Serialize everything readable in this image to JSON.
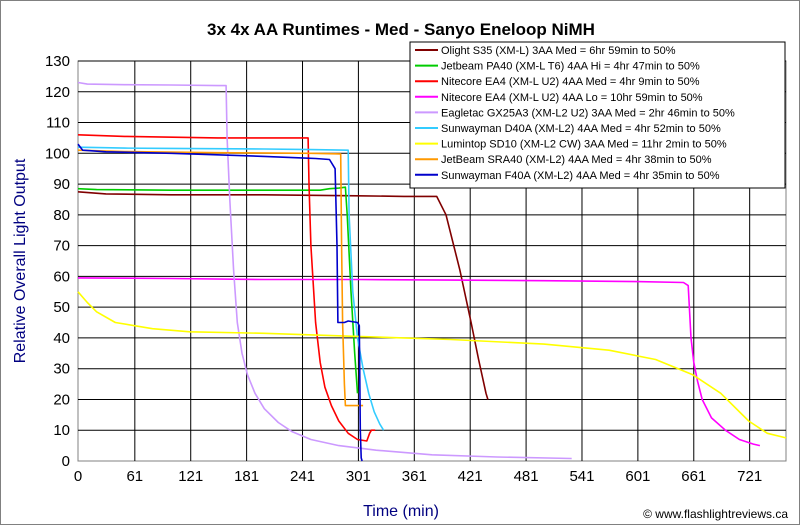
{
  "chart_data": {
    "type": "line",
    "title": "3x 4x AA Runtimes - Med - Sanyo Eneloop NiMH",
    "xlabel": "Time (min)",
    "ylabel": "Relative Overall Light Output",
    "xlim": [
      0,
      760
    ],
    "ylim": [
      0,
      130
    ],
    "x_ticks": [
      0,
      61,
      121,
      181,
      241,
      301,
      361,
      421,
      481,
      541,
      601,
      661,
      721
    ],
    "y_ticks": [
      0,
      10,
      20,
      30,
      40,
      50,
      60,
      70,
      80,
      90,
      100,
      110,
      120,
      130
    ],
    "grid": true,
    "legend_position": "top-right",
    "copyright": "© www.flashlightreviews.ca",
    "series": [
      {
        "name": "Olight S35 (XM-L) 3AA Med = 6hr 59min to 50%",
        "color": "#800000",
        "points": [
          [
            0,
            87.5
          ],
          [
            30,
            86.8
          ],
          [
            100,
            86.5
          ],
          [
            200,
            86.5
          ],
          [
            300,
            86.2
          ],
          [
            350,
            86
          ],
          [
            385,
            86
          ],
          [
            395,
            80
          ],
          [
            410,
            62
          ],
          [
            422,
            45
          ],
          [
            430,
            33
          ],
          [
            438,
            22
          ],
          [
            440,
            20
          ]
        ]
      },
      {
        "name": "Jetbeam PA40 (XM-L T6) 4AA Hi = 4hr 47min to 50%",
        "color": "#00cc00",
        "points": [
          [
            0,
            88.5
          ],
          [
            20,
            88.2
          ],
          [
            100,
            88
          ],
          [
            200,
            88
          ],
          [
            260,
            88
          ],
          [
            270,
            88.5
          ],
          [
            280,
            88.7
          ],
          [
            287,
            89
          ],
          [
            289,
            80
          ],
          [
            293,
            55
          ],
          [
            297,
            35
          ],
          [
            300,
            22
          ]
        ]
      },
      {
        "name": "Nitecore EA4 (XM-L U2) 4AA Med = 4hr 9min to 50%",
        "color": "#ff0000",
        "points": [
          [
            0,
            106
          ],
          [
            50,
            105.5
          ],
          [
            150,
            105
          ],
          [
            247,
            105
          ],
          [
            248,
            90
          ],
          [
            250,
            70
          ],
          [
            255,
            45
          ],
          [
            260,
            32
          ],
          [
            265,
            24
          ],
          [
            272,
            18
          ],
          [
            280,
            13
          ],
          [
            290,
            9
          ],
          [
            300,
            7
          ],
          [
            310,
            6.5
          ],
          [
            313,
            9
          ],
          [
            315,
            10
          ],
          [
            319,
            10
          ]
        ]
      },
      {
        "name": "Nitecore EA4 (XM-L U2) 4AA Lo = 10hr 59min to 50%",
        "color": "#ff00ff",
        "points": [
          [
            0,
            59.5
          ],
          [
            100,
            59.3
          ],
          [
            200,
            59
          ],
          [
            300,
            59
          ],
          [
            400,
            58.8
          ],
          [
            500,
            58.6
          ],
          [
            600,
            58.3
          ],
          [
            650,
            58
          ],
          [
            655,
            57
          ],
          [
            658,
            40
          ],
          [
            661,
            32
          ],
          [
            665,
            26
          ],
          [
            670,
            20
          ],
          [
            680,
            14
          ],
          [
            695,
            10
          ],
          [
            710,
            7
          ],
          [
            725,
            5.5
          ],
          [
            732,
            5
          ]
        ]
      },
      {
        "name": "Eagletac GX25A3 (XM-L2 U2) 3AA Med = 2hr 46min to 50%",
        "color": "#cc99ff",
        "points": [
          [
            0,
            123
          ],
          [
            10,
            122.5
          ],
          [
            50,
            122.3
          ],
          [
            100,
            122.2
          ],
          [
            150,
            122
          ],
          [
            159,
            122
          ],
          [
            160,
            105
          ],
          [
            163,
            85
          ],
          [
            167,
            62
          ],
          [
            171,
            45
          ],
          [
            176,
            35
          ],
          [
            182,
            28
          ],
          [
            190,
            22
          ],
          [
            200,
            17
          ],
          [
            215,
            12.5
          ],
          [
            230,
            9.5
          ],
          [
            250,
            7
          ],
          [
            280,
            5
          ],
          [
            320,
            3.5
          ],
          [
            380,
            2
          ],
          [
            450,
            1.3
          ],
          [
            530,
            0.8
          ]
        ]
      },
      {
        "name": "Sunwayman D40A (XM-L2) 4AA Med = 4hr 52min to 50%",
        "color": "#33ccff",
        "points": [
          [
            0,
            102
          ],
          [
            50,
            101.7
          ],
          [
            100,
            101.6
          ],
          [
            200,
            101.4
          ],
          [
            250,
            101.2
          ],
          [
            290,
            101
          ],
          [
            291,
            80
          ],
          [
            295,
            55
          ],
          [
            300,
            40
          ],
          [
            306,
            30
          ],
          [
            312,
            22
          ],
          [
            318,
            16
          ],
          [
            324,
            12
          ],
          [
            328,
            10
          ]
        ]
      },
      {
        "name": "Lumintop SD10 (XM-L2 CW) 3AA Med = 11hr 2min to 50%",
        "color": "#ffff00",
        "points": [
          [
            0,
            55
          ],
          [
            10,
            51.5
          ],
          [
            20,
            48.5
          ],
          [
            40,
            45
          ],
          [
            80,
            43
          ],
          [
            120,
            42
          ],
          [
            200,
            41.5
          ],
          [
            300,
            40.5
          ],
          [
            400,
            39.5
          ],
          [
            500,
            38
          ],
          [
            570,
            36
          ],
          [
            620,
            33
          ],
          [
            660,
            28
          ],
          [
            690,
            22
          ],
          [
            720,
            13
          ],
          [
            740,
            9
          ],
          [
            760,
            7.5
          ]
        ]
      },
      {
        "name": "JetBeam SRA40 (XM-L2) 4AA Med = 4hr 38min to 50%",
        "color": "#ff9900",
        "points": [
          [
            0,
            101
          ],
          [
            50,
            100.6
          ],
          [
            150,
            100.2
          ],
          [
            250,
            100
          ],
          [
            282,
            99.8
          ],
          [
            283,
            70
          ],
          [
            284,
            45
          ],
          [
            286,
            25
          ],
          [
            287,
            18
          ],
          [
            300,
            18
          ],
          [
            306,
            18
          ]
        ]
      },
      {
        "name": "Sunwayman F40A (XM-L2) 4AA Med = 4hr 35min to 50%",
        "color": "#0000cc",
        "points": [
          [
            0,
            103
          ],
          [
            5,
            101
          ],
          [
            30,
            100.5
          ],
          [
            100,
            100
          ],
          [
            200,
            99
          ],
          [
            240,
            98.5
          ],
          [
            255,
            98.3
          ],
          [
            270,
            98
          ],
          [
            276,
            95
          ],
          [
            278,
            70
          ],
          [
            279,
            45
          ],
          [
            286,
            45
          ],
          [
            290,
            45.5
          ],
          [
            300,
            45
          ],
          [
            302,
            44
          ],
          [
            303,
            10
          ],
          [
            304,
            1
          ],
          [
            305,
            0
          ]
        ]
      }
    ]
  }
}
